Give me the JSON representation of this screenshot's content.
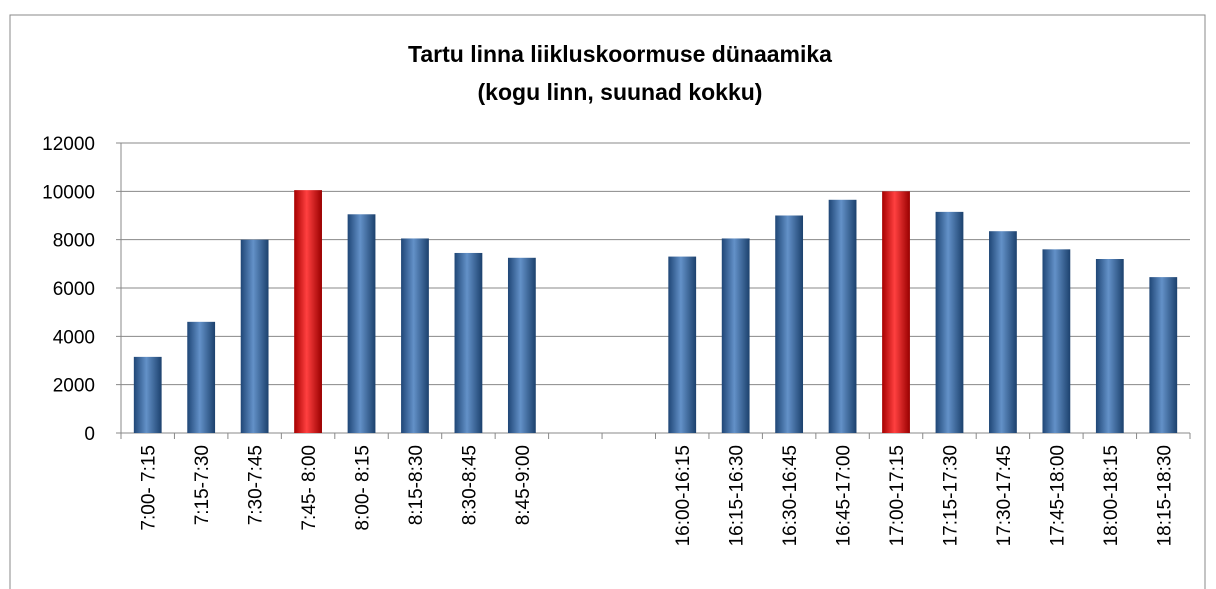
{
  "chart_data": {
    "type": "bar",
    "title": "Tartu linna liikluskoormuse dünaamika",
    "subtitle": "(kogu linn, suunad kokku)",
    "categories": [
      "7:00- 7:15",
      "7:15-7:30",
      "7:30-7:45",
      "7:45- 8:00",
      "8:00- 8:15",
      "8:15-8:30",
      "8:30-8:45",
      "8:45-9:00",
      null,
      null,
      "16:00-16:15",
      "16:15-16:30",
      "16:30-16:45",
      "16:45-17:00",
      "17:00-17:15",
      "17:15-17:30",
      "17:30-17:45",
      "17:45-18:00",
      "18:00-18:15",
      "18:15-18:30"
    ],
    "values": [
      3150,
      4600,
      8000,
      10050,
      9050,
      8050,
      7450,
      7250,
      null,
      null,
      7300,
      8050,
      9000,
      9650,
      10000,
      9150,
      8350,
      7600,
      7200,
      6450
    ],
    "colors": [
      "#2f6cb5",
      "#2f6cb5",
      "#2f6cb5",
      "#ff0000",
      "#2f6cb5",
      "#2f6cb5",
      "#2f6cb5",
      "#2f6cb5",
      null,
      null,
      "#2f6cb5",
      "#2f6cb5",
      "#2f6cb5",
      "#2f6cb5",
      "#ff0000",
      "#2f6cb5",
      "#2f6cb5",
      "#2f6cb5",
      "#2f6cb5",
      "#2f6cb5"
    ],
    "ylim": [
      0,
      12000
    ],
    "yticks": [
      0,
      2000,
      4000,
      6000,
      8000,
      10000,
      12000
    ],
    "grid": true
  }
}
